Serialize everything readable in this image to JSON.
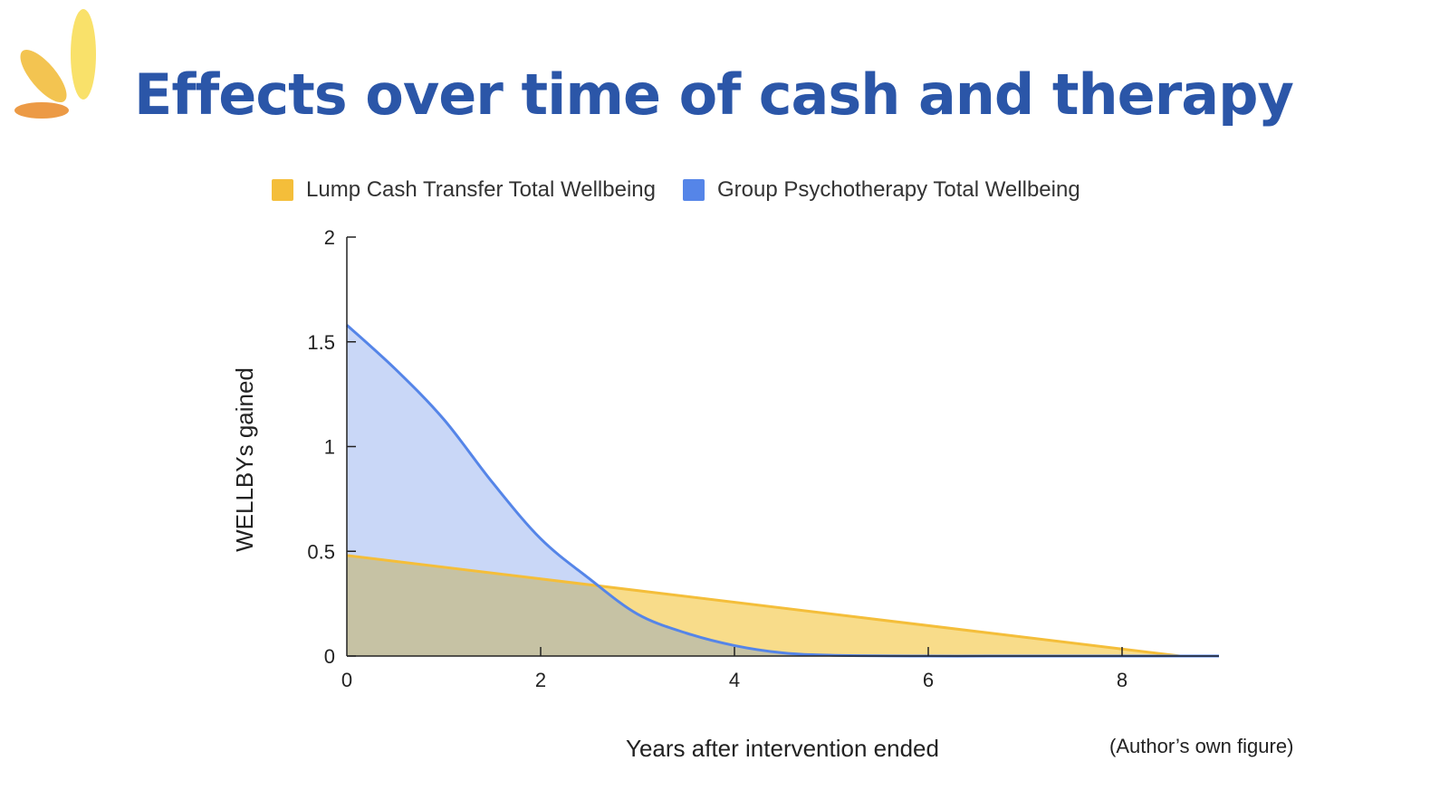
{
  "slide": {
    "title": "Effects over time of cash and therapy",
    "credit": "(Author’s own figure)"
  },
  "colors": {
    "title": "#2b56a8",
    "cash_line": "#f4be3a",
    "cash_fill": "#f8dc8a",
    "therapy_line": "#5585e8",
    "therapy_fill": "#c9d7f7",
    "overlap_fill": "#c6c2a4"
  },
  "chart_data": {
    "type": "area",
    "xlabel": "Years after intervention ended",
    "ylabel": "WELLBYs gained",
    "xlim": [
      0,
      9
    ],
    "ylim": [
      0,
      2
    ],
    "x_ticks": [
      0,
      2,
      4,
      6,
      8
    ],
    "y_ticks": [
      0,
      0.5,
      1,
      1.5,
      2
    ],
    "y_tick_labels": [
      "0",
      "0.5",
      "1",
      "1.5",
      "2"
    ],
    "grid": false,
    "legend_position": "top",
    "series": [
      {
        "name": "Lump Cash Transfer Total Wellbeing",
        "x": [
          0,
          8.6,
          9
        ],
        "y": [
          0.48,
          0,
          0
        ]
      },
      {
        "name": "Group Psychotherapy Total Wellbeing",
        "x": [
          0,
          0.5,
          1,
          1.5,
          2,
          2.5,
          3,
          3.5,
          4,
          4.5,
          5,
          6,
          7,
          8,
          9
        ],
        "y": [
          1.58,
          1.37,
          1.13,
          0.83,
          0.56,
          0.37,
          0.2,
          0.11,
          0.05,
          0.015,
          0.004,
          0,
          0,
          0,
          0
        ]
      }
    ]
  }
}
